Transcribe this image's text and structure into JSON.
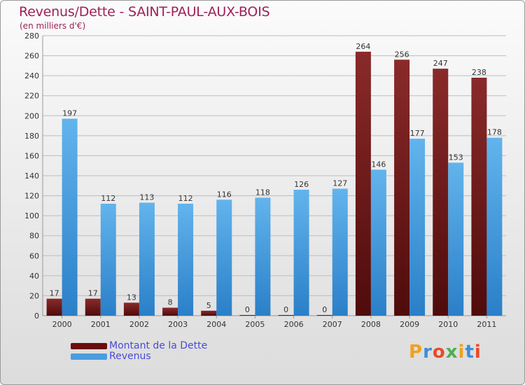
{
  "title": "Revenus/Dette - SAINT-PAUL-AUX-BOIS",
  "subtitle": "(en milliers d'€)",
  "logo": {
    "text": "Proxiti",
    "letter_colors": [
      "#f0a020",
      "#3a8fd8",
      "#e84a2a",
      "#4caf50",
      "#f0a020",
      "#3a8fd8",
      "#e84a2a"
    ]
  },
  "colors": {
    "dette": "#7a1f1f",
    "dette_dark": "#4f0b0b",
    "revenus": "#5aaee8",
    "revenus_dark": "#2a7fc8",
    "grid": "#bdbdbd",
    "axis_text": "#333333",
    "legend_text": "#4b4bd8"
  },
  "legend": [
    {
      "label": "Montant de la Dette",
      "color": "#6a0d0d"
    },
    {
      "label": "Revenus",
      "color": "#4a9de0"
    }
  ],
  "chart_data": {
    "type": "bar",
    "title": "Revenus/Dette - SAINT-PAUL-AUX-BOIS",
    "categories": [
      "2000",
      "2001",
      "2002",
      "2003",
      "2004",
      "2005",
      "2006",
      "2007",
      "2008",
      "2009",
      "2010",
      "2011"
    ],
    "series": [
      {
        "name": "Montant de la Dette",
        "values": [
          17,
          17,
          13,
          8,
          5,
          0,
          0,
          0,
          264,
          256,
          247,
          238
        ]
      },
      {
        "name": "Revenus",
        "values": [
          197,
          112,
          113,
          112,
          116,
          118,
          126,
          127,
          146,
          177,
          153,
          178
        ]
      }
    ],
    "ylim": [
      0,
      280
    ],
    "yticks": [
      0,
      20,
      40,
      60,
      80,
      100,
      120,
      140,
      160,
      180,
      200,
      220,
      240,
      260,
      280
    ],
    "grid": true,
    "legend_position": "bottom-left"
  }
}
